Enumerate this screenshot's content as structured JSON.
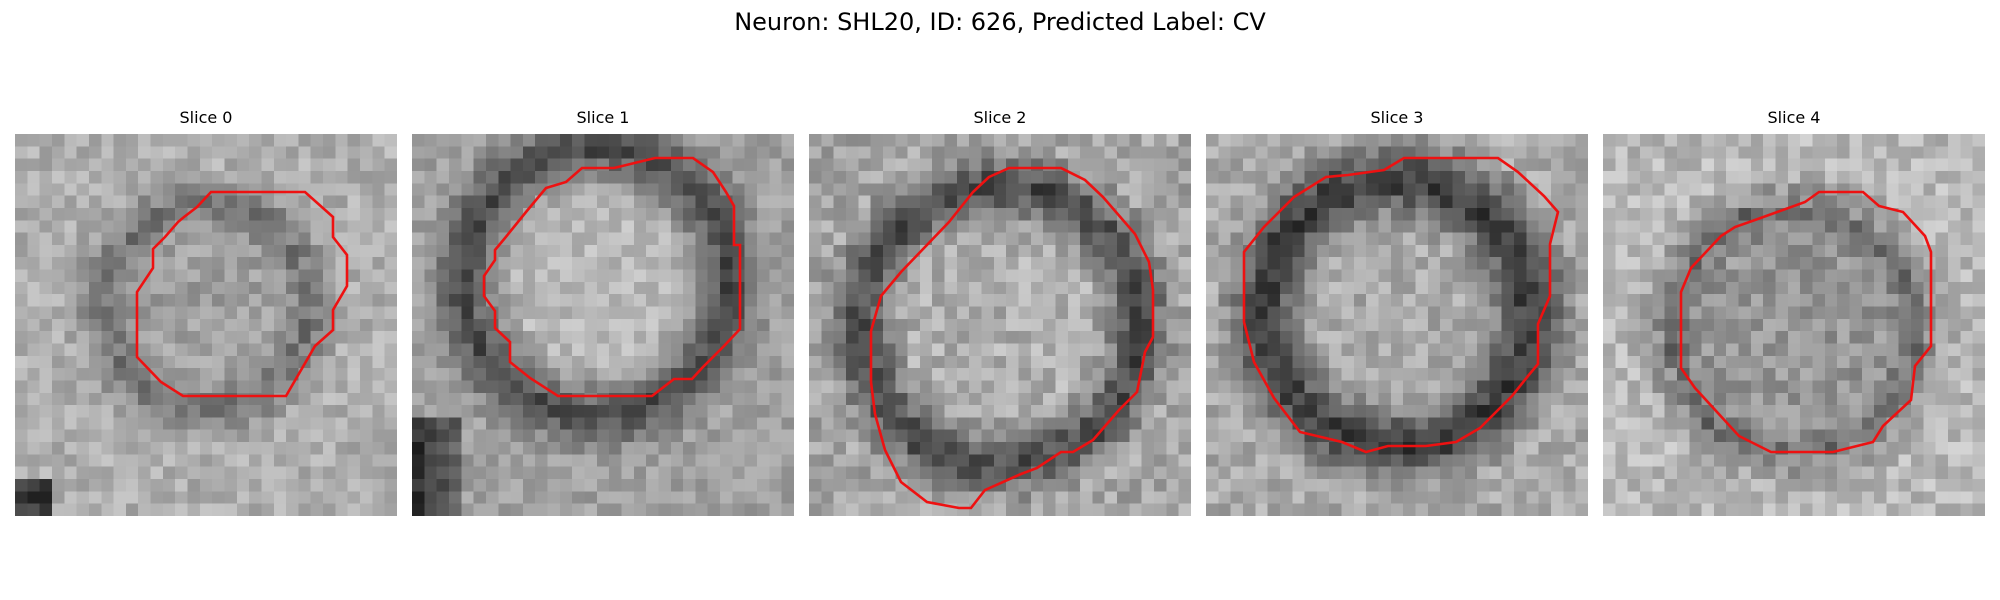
{
  "figure": {
    "title": "Neuron: SHL20, ID: 626, Predicted Label: CV"
  },
  "colors": {
    "contour": "#ee1111",
    "background": "#ffffff"
  },
  "slices": [
    {
      "title": "Slice 0"
    },
    {
      "title": "Slice 1"
    },
    {
      "title": "Slice 2"
    },
    {
      "title": "Slice 3"
    },
    {
      "title": "Slice 4"
    }
  ]
}
